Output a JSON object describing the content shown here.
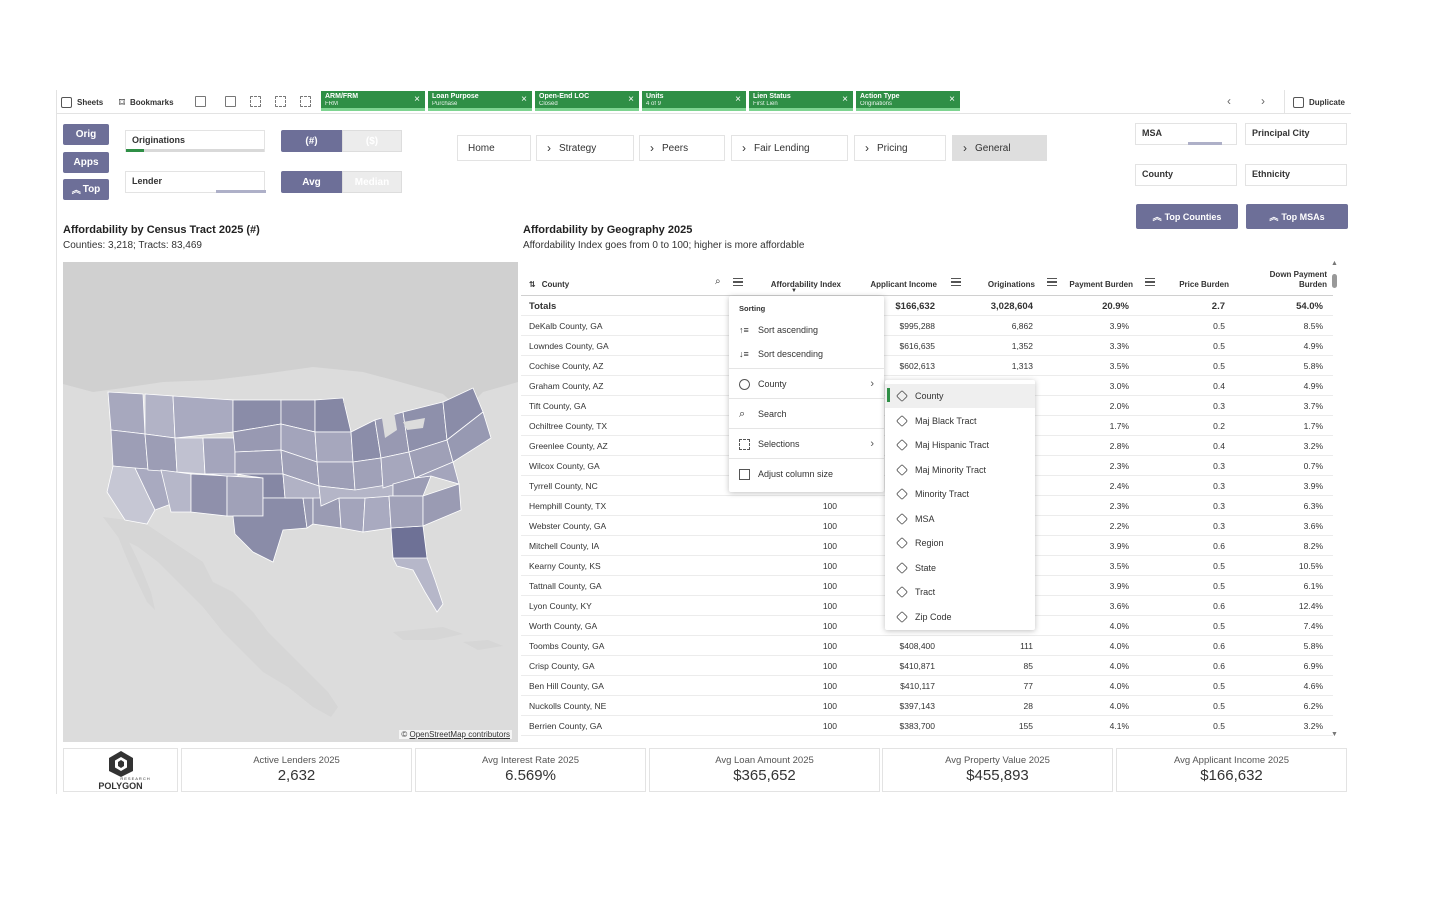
{
  "toolbar": {
    "sheets": "Sheets",
    "bookmarks": "Bookmarks",
    "duplicate": "Duplicate",
    "chips": [
      {
        "title": "ARM/FRM",
        "value": "FRM"
      },
      {
        "title": "Loan Purpose",
        "value": "Purchase"
      },
      {
        "title": "Open-End LOC",
        "value": "Closed"
      },
      {
        "title": "Units",
        "value": "4 of 9"
      },
      {
        "title": "Lien Status",
        "value": "First Lien"
      },
      {
        "title": "Action Type",
        "value": "Originations"
      }
    ]
  },
  "controls": {
    "orig": "Orig",
    "apps": "Apps",
    "top": "Top",
    "originations": "Originations",
    "lender": "Lender",
    "count_toggle": {
      "on": "(#)",
      "off": "($)"
    },
    "avg_toggle": {
      "on": "Avg",
      "off": "Median"
    }
  },
  "nav": {
    "tabs": [
      {
        "label": "Home",
        "chevron": false,
        "active": false
      },
      {
        "label": "Strategy",
        "chevron": true,
        "active": false
      },
      {
        "label": "Peers",
        "chevron": true,
        "active": false
      },
      {
        "label": "Fair Lending",
        "chevron": true,
        "active": false
      },
      {
        "label": "Pricing",
        "chevron": true,
        "active": false
      },
      {
        "label": "General",
        "chevron": true,
        "active": true
      }
    ]
  },
  "right_filters": {
    "msa": "MSA",
    "principal_city": "Principal City",
    "county": "County",
    "ethnicity": "Ethnicity",
    "top_counties": "Top Counties",
    "top_msas": "Top MSAs"
  },
  "map_panel": {
    "title": "Affordability by Census Tract 2025 (#)",
    "subtitle": "Counties: 3,218; Tracts: 83,469",
    "attribution_prefix": "©",
    "attribution_link": "OpenStreetMap contributors"
  },
  "table_panel": {
    "title": "Affordability by Geography 2025",
    "subtitle": "Affordability Index goes from 0 to 100; higher is more affordable",
    "columns": [
      "County",
      "Affordability Index",
      "Applicant Income",
      "Originations",
      "Payment Burden",
      "Price Burden",
      "Down Payment Burden"
    ],
    "totals": {
      "label": "Totals",
      "applicant_income": "$166,632",
      "originations": "3,028,604",
      "payment_burden": "20.9%",
      "price_burden": "2.7",
      "down_payment_burden": "54.0%"
    },
    "rows": [
      {
        "county": "DeKalb County, GA",
        "index": "",
        "income": "$995,288",
        "orig": "6,862",
        "pay": "3.9%",
        "price": "0.5",
        "down": "8.5%"
      },
      {
        "county": "Lowndes County, GA",
        "index": "",
        "income": "$616,635",
        "orig": "1,352",
        "pay": "3.3%",
        "price": "0.5",
        "down": "4.9%"
      },
      {
        "county": "Cochise County, AZ",
        "index": "",
        "income": "$602,613",
        "orig": "1,313",
        "pay": "3.5%",
        "price": "0.5",
        "down": "5.8%"
      },
      {
        "county": "Graham County, AZ",
        "index": "",
        "income": "",
        "orig": "",
        "pay": "3.0%",
        "price": "0.4",
        "down": "4.9%"
      },
      {
        "county": "Tift County, GA",
        "index": "",
        "income": "",
        "orig": "",
        "pay": "2.0%",
        "price": "0.3",
        "down": "3.7%"
      },
      {
        "county": "Ochiltree County, TX",
        "index": "",
        "income": "",
        "orig": "",
        "pay": "1.7%",
        "price": "0.2",
        "down": "1.7%"
      },
      {
        "county": "Greenlee County, AZ",
        "index": "",
        "income": "",
        "orig": "",
        "pay": "2.8%",
        "price": "0.4",
        "down": "3.2%"
      },
      {
        "county": "Wilcox County, GA",
        "index": "",
        "income": "",
        "orig": "",
        "pay": "2.3%",
        "price": "0.3",
        "down": "0.7%"
      },
      {
        "county": "Tyrrell County, NC",
        "index": "",
        "income": "",
        "orig": "",
        "pay": "2.4%",
        "price": "0.3",
        "down": "3.9%"
      },
      {
        "county": "Hemphill County, TX",
        "index": "100",
        "income": "",
        "orig": "",
        "pay": "2.3%",
        "price": "0.3",
        "down": "6.3%"
      },
      {
        "county": "Webster County, GA",
        "index": "100",
        "income": "",
        "orig": "",
        "pay": "2.2%",
        "price": "0.3",
        "down": "3.6%"
      },
      {
        "county": "Mitchell County, IA",
        "index": "100",
        "income": "",
        "orig": "",
        "pay": "3.9%",
        "price": "0.6",
        "down": "8.2%"
      },
      {
        "county": "Kearny County, KS",
        "index": "100",
        "income": "",
        "orig": "",
        "pay": "3.5%",
        "price": "0.5",
        "down": "10.5%"
      },
      {
        "county": "Tattnall County, GA",
        "index": "100",
        "income": "",
        "orig": "",
        "pay": "3.9%",
        "price": "0.5",
        "down": "6.1%"
      },
      {
        "county": "Lyon County, KY",
        "index": "100",
        "income": "",
        "orig": "",
        "pay": "3.6%",
        "price": "0.6",
        "down": "12.4%"
      },
      {
        "county": "Worth County, GA",
        "index": "100",
        "income": "",
        "orig": "",
        "pay": "4.0%",
        "price": "0.5",
        "down": "7.4%"
      },
      {
        "county": "Toombs County, GA",
        "index": "100",
        "income": "$408,400",
        "orig": "111",
        "pay": "4.0%",
        "price": "0.6",
        "down": "5.8%"
      },
      {
        "county": "Crisp County, GA",
        "index": "100",
        "income": "$410,871",
        "orig": "85",
        "pay": "4.0%",
        "price": "0.6",
        "down": "6.9%"
      },
      {
        "county": "Ben Hill County, GA",
        "index": "100",
        "income": "$410,117",
        "orig": "77",
        "pay": "4.0%",
        "price": "0.5",
        "down": "4.6%"
      },
      {
        "county": "Nuckolls County, NE",
        "index": "100",
        "income": "$397,143",
        "orig": "28",
        "pay": "4.0%",
        "price": "0.5",
        "down": "6.2%"
      },
      {
        "county": "Berrien County, GA",
        "index": "100",
        "income": "$383,700",
        "orig": "155",
        "pay": "4.1%",
        "price": "0.5",
        "down": "3.2%"
      }
    ]
  },
  "context_menu": {
    "title": "Sorting",
    "sort_asc": "Sort ascending",
    "sort_desc": "Sort descending",
    "county": "County",
    "search": "Search",
    "selections": "Selections",
    "adjust": "Adjust column size"
  },
  "dimension_menu": {
    "items": [
      "County",
      "Maj Black Tract",
      "Maj Hispanic Tract",
      "Maj Minority Tract",
      "Minority Tract",
      "MSA",
      "Region",
      "State",
      "Tract",
      "Zip Code"
    ]
  },
  "kpis": {
    "logo_sub": "RESEARCH",
    "logo_text": "POLYGON",
    "items": [
      {
        "label": "Active Lenders 2025",
        "value": "2,632"
      },
      {
        "label": "Avg Interest Rate 2025",
        "value": "6.569%"
      },
      {
        "label": "Avg Loan Amount 2025",
        "value": "$365,652"
      },
      {
        "label": "Avg Property Value 2025",
        "value": "$455,893"
      },
      {
        "label": "Avg Applicant Income 2025",
        "value": "$166,632"
      }
    ]
  },
  "colors": {
    "accent": "#6d6f98",
    "selection_green": "#2f8f46",
    "highlight_state": "#6e7196"
  }
}
